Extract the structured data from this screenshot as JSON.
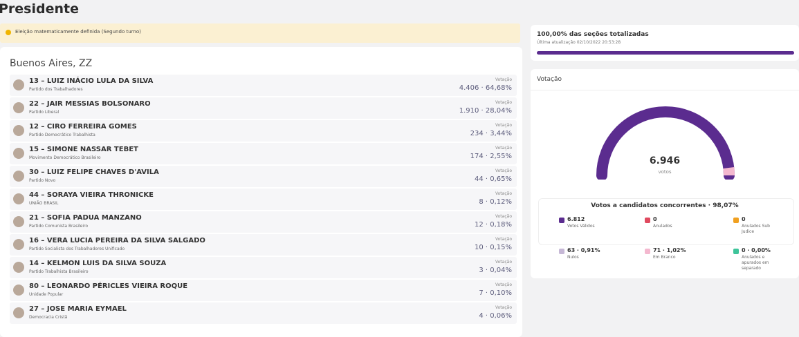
{
  "header": {
    "title": "Presidente"
  },
  "alert": {
    "text": "Eleição matematicamente definida (Segundo turno)"
  },
  "location": "Buenos Aires, ZZ",
  "candidates": [
    {
      "name": "13 – LUIZ INÁCIO LULA DA SILVA",
      "party": "Partido dos Trabalhadores",
      "label": "Votação",
      "result": "4.406 · 64,68%"
    },
    {
      "name": "22 – JAIR MESSIAS BOLSONARO",
      "party": "Partido Liberal",
      "label": "Votação",
      "result": "1.910 · 28,04%"
    },
    {
      "name": "12 – CIRO FERREIRA GOMES",
      "party": "Partido Democrático Trabalhista",
      "label": "Votação",
      "result": "234 · 3,44%"
    },
    {
      "name": "15 – SIMONE NASSAR TEBET",
      "party": "Movimento Democrático Brasileiro",
      "label": "Votação",
      "result": "174 · 2,55%"
    },
    {
      "name": "30 – LUIZ FELIPE CHAVES D'AVILA",
      "party": "Partido Novo",
      "label": "Votação",
      "result": "44 · 0,65%"
    },
    {
      "name": "44 – SORAYA VIEIRA THRONICKE",
      "party": "UNIÃO BRASIL",
      "label": "Votação",
      "result": "8 · 0,12%"
    },
    {
      "name": "21 – SOFIA PADUA MANZANO",
      "party": "Partido Comunista Brasileiro",
      "label": "Votação",
      "result": "12 · 0,18%"
    },
    {
      "name": "16 – VERA LUCIA PEREIRA DA SILVA SALGADO",
      "party": "Partido Socialista dos Trabalhadores Unificado",
      "label": "Votação",
      "result": "10 · 0,15%"
    },
    {
      "name": "14 – KELMON LUIS DA SILVA SOUZA",
      "party": "Partido Trabalhista Brasileiro",
      "label": "Votação",
      "result": "3 · 0,04%"
    },
    {
      "name": "80 – LEONARDO PÉRICLES VIEIRA ROQUE",
      "party": "Unidade Popular",
      "label": "Votação",
      "result": "7 · 0,10%"
    },
    {
      "name": "27 – JOSE MARIA EYMAEL",
      "party": "Democracia Cristã",
      "label": "Votação",
      "result": "4 · 0,06%"
    }
  ],
  "progress": {
    "title": "100,00% das seções totalizadas",
    "updated": "Última atualização 02/10/2022 20:53:28"
  },
  "votes": {
    "title": "Votação",
    "total": "6.946",
    "total_label": "votos"
  },
  "summary": {
    "title": "Votos a candidatos concorrentes · 98,07%",
    "items": [
      {
        "value": "6.812",
        "label": "Votos Válidos",
        "color": "#5b2c8f"
      },
      {
        "value": "0",
        "label": "Anulados",
        "color": "#e04a5f"
      },
      {
        "value": "0",
        "label": "Anulados Sub Judice",
        "color": "#f0a020"
      },
      {
        "value": "63 · 0,91%",
        "label": "Nulos",
        "color": "#c6b8d6"
      },
      {
        "value": "71 · 1,02%",
        "label": "Em Branco",
        "color": "#f4b8cf"
      },
      {
        "value": "0 · 0,00%",
        "label": "Anulados e apurados em separado",
        "color": "#3ec49a"
      }
    ]
  }
}
